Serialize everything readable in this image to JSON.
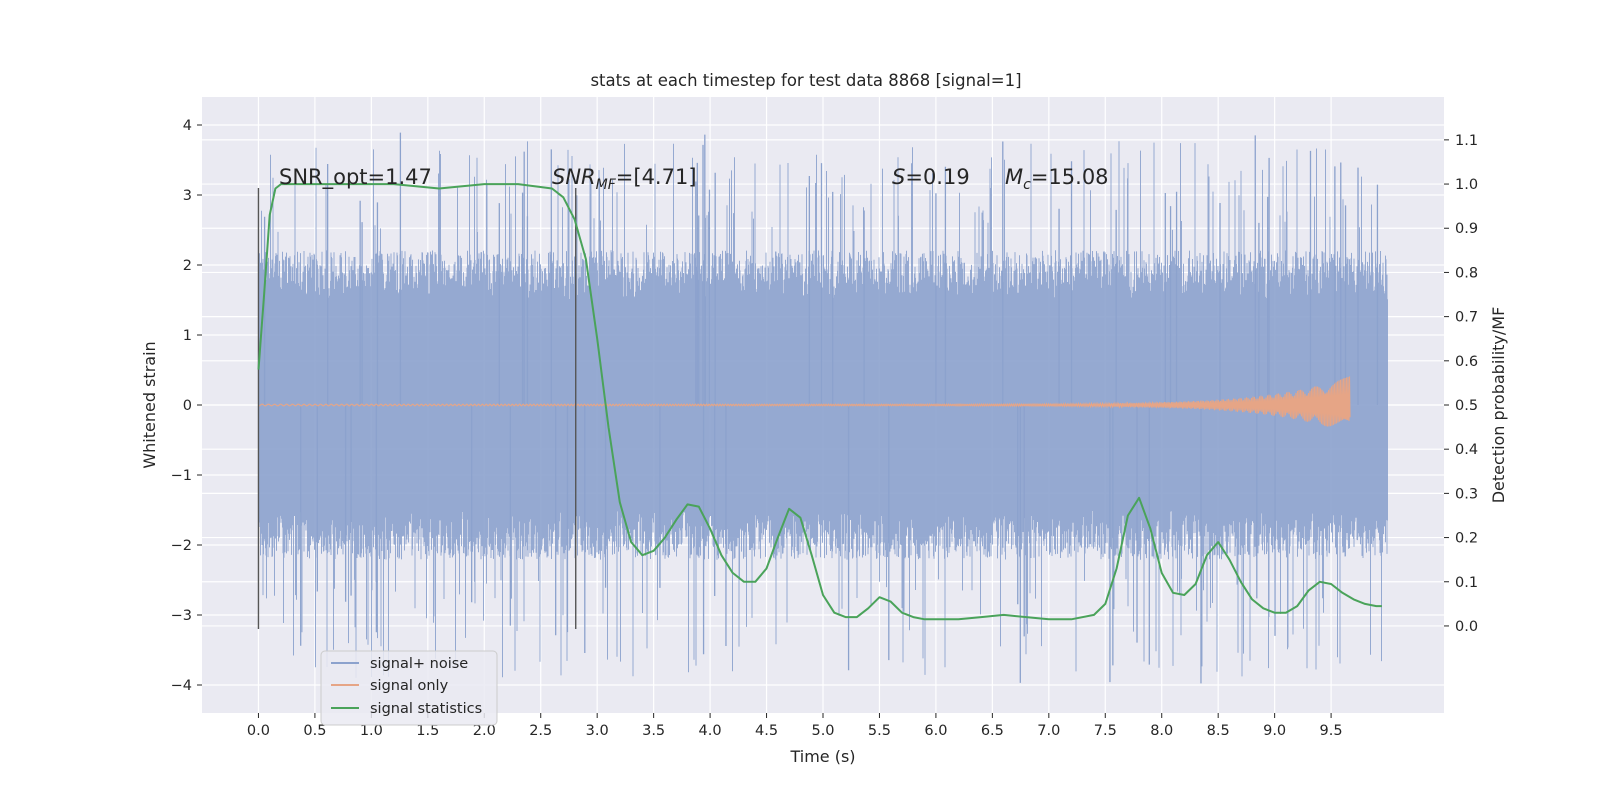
{
  "chart_data": {
    "type": "line",
    "title": "stats at each timestep for test data 8868 [signal=1]",
    "xlabel": "Time (s)",
    "ylabel": "Whitened strain",
    "y2label": "Detection probability/MF",
    "xlim": [
      -0.5,
      10.5
    ],
    "ylim": [
      -4.4,
      4.4
    ],
    "y2lim": [
      -0.197,
      1.197
    ],
    "x_ticks": [
      "0.0",
      "0.5",
      "1.0",
      "1.5",
      "2.0",
      "2.5",
      "3.0",
      "3.5",
      "4.0",
      "4.5",
      "5.0",
      "5.5",
      "6.0",
      "6.5",
      "7.0",
      "7.5",
      "8.0",
      "8.5",
      "9.0",
      "9.5"
    ],
    "y_ticks": [
      "4",
      "3",
      "2",
      "1",
      "0",
      "−1",
      "−2",
      "−3",
      "−4"
    ],
    "y2_ticks": [
      "1.1",
      "1.0",
      "0.9",
      "0.8",
      "0.7",
      "0.6",
      "0.5",
      "0.4",
      "0.3",
      "0.2",
      "0.1",
      "0.0"
    ],
    "grid": true,
    "legend_position": "lower-left",
    "annotations": {
      "snr_opt": "SNR_opt=1.47",
      "snr_mf": {
        "main": "SNR",
        "sub": "MF",
        "rest": "=[4.71]"
      },
      "s": {
        "sym": "S",
        "rest": "=0.19"
      },
      "mc": {
        "main": "M",
        "sub": "c",
        "rest": "=15.08"
      }
    },
    "vlines_x": [
      0.0,
      2.81
    ],
    "series": [
      {
        "name": "signal+ noise",
        "color": "#8ca2cd",
        "x_range": [
          0.0,
          10.0
        ],
        "typical_amplitude": 1.3,
        "max": 4.0,
        "min": -4.1
      },
      {
        "name": "signal only",
        "color": "#e6a586",
        "x_range": [
          0.0,
          9.67
        ],
        "peak_amplitude": 0.4,
        "peak_x": 9.67
      },
      {
        "name": "signal statistics",
        "color": "#4aa35a",
        "axis": "right",
        "x": [
          0.0,
          0.05,
          0.1,
          0.15,
          0.2,
          0.4,
          0.8,
          1.2,
          1.6,
          2.0,
          2.3,
          2.6,
          2.7,
          2.8,
          2.9,
          3.0,
          3.1,
          3.2,
          3.3,
          3.4,
          3.5,
          3.6,
          3.7,
          3.8,
          3.9,
          4.0,
          4.1,
          4.2,
          4.3,
          4.4,
          4.5,
          4.6,
          4.7,
          4.8,
          4.9,
          5.0,
          5.1,
          5.2,
          5.3,
          5.4,
          5.5,
          5.6,
          5.7,
          5.8,
          5.9,
          6.0,
          6.2,
          6.4,
          6.6,
          6.8,
          7.0,
          7.2,
          7.4,
          7.5,
          7.6,
          7.7,
          7.8,
          7.9,
          8.0,
          8.1,
          8.2,
          8.3,
          8.4,
          8.5,
          8.6,
          8.7,
          8.8,
          8.9,
          9.0,
          9.1,
          9.2,
          9.3,
          9.4,
          9.5,
          9.6,
          9.7,
          9.8,
          9.9,
          9.95
        ],
        "values": [
          0.58,
          0.75,
          0.93,
          0.99,
          1.0,
          1.0,
          1.0,
          1.0,
          0.99,
          1.0,
          1.0,
          0.99,
          0.97,
          0.92,
          0.83,
          0.65,
          0.45,
          0.28,
          0.19,
          0.16,
          0.17,
          0.2,
          0.24,
          0.275,
          0.27,
          0.22,
          0.16,
          0.12,
          0.1,
          0.1,
          0.13,
          0.2,
          0.265,
          0.245,
          0.16,
          0.07,
          0.03,
          0.02,
          0.02,
          0.04,
          0.065,
          0.055,
          0.03,
          0.02,
          0.015,
          0.015,
          0.015,
          0.02,
          0.025,
          0.02,
          0.015,
          0.015,
          0.025,
          0.05,
          0.13,
          0.25,
          0.29,
          0.22,
          0.12,
          0.075,
          0.07,
          0.095,
          0.16,
          0.19,
          0.15,
          0.1,
          0.06,
          0.04,
          0.03,
          0.03,
          0.045,
          0.08,
          0.1,
          0.095,
          0.075,
          0.06,
          0.05,
          0.045,
          0.045
        ]
      }
    ]
  }
}
